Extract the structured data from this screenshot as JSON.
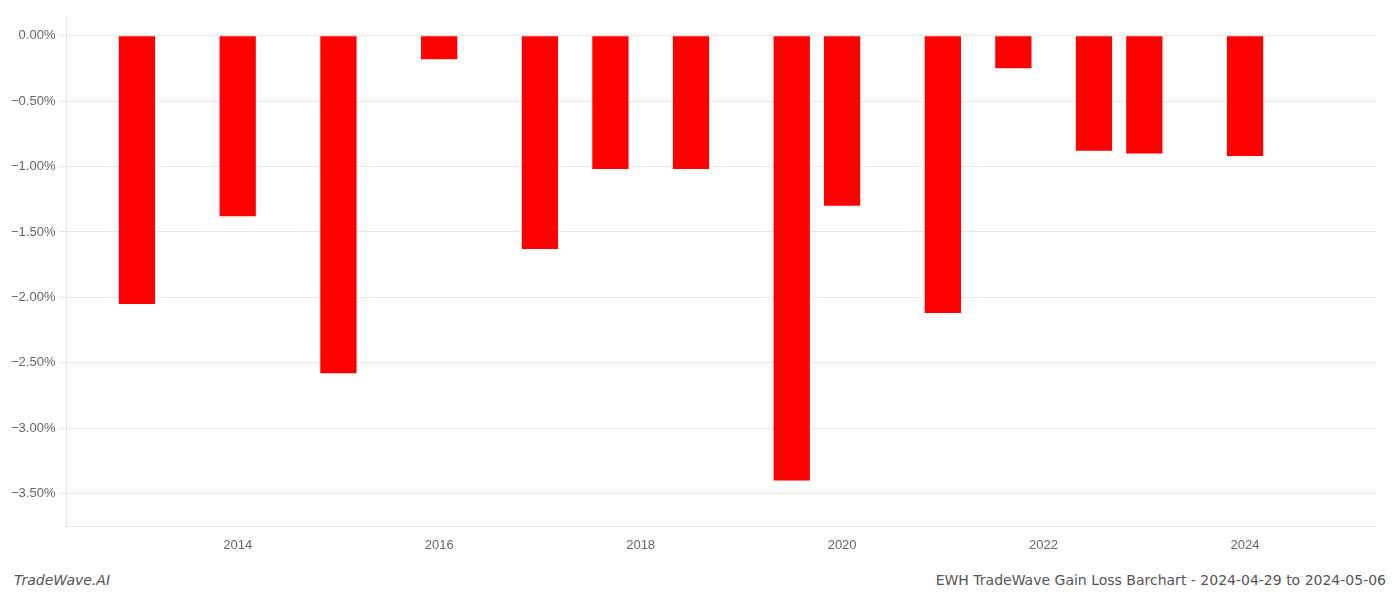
{
  "chart_data": {
    "type": "bar",
    "title": "EWH TradeWave Gain Loss Barchart - 2024-04-29 to 2024-05-06",
    "annotations": [
      "TradeWave.AI"
    ],
    "x": [
      2013,
      2014,
      2015,
      2016,
      2017,
      2017.7,
      2018.5,
      2019.5,
      2020,
      2021,
      2021.7,
      2022.5,
      2023,
      2024
    ],
    "values": [
      -2.05,
      -1.38,
      -2.58,
      -0.18,
      -1.63,
      -1.02,
      -1.02,
      -3.4,
      -1.3,
      -2.12,
      -0.25,
      -0.88,
      -0.9,
      -0.92
    ],
    "color": "#ff0000",
    "xlim": [
      2012.3,
      2025.3
    ],
    "xticks": [
      2014,
      2016,
      2018,
      2020,
      2022,
      2024
    ],
    "ylim": [
      -3.75,
      0.15
    ],
    "yticks": [
      {
        "value": 0,
        "label": "0.00%"
      },
      {
        "value": -0.5,
        "label": "−0.50%"
      },
      {
        "value": -1.0,
        "label": "−1.00%"
      },
      {
        "value": -1.5,
        "label": "−1.50%"
      },
      {
        "value": -2.0,
        "label": "−2.00%"
      },
      {
        "value": -2.5,
        "label": "−2.50%"
      },
      {
        "value": -3.0,
        "label": "−3.00%"
      },
      {
        "value": -3.5,
        "label": "−3.50%"
      }
    ],
    "grid": true
  }
}
